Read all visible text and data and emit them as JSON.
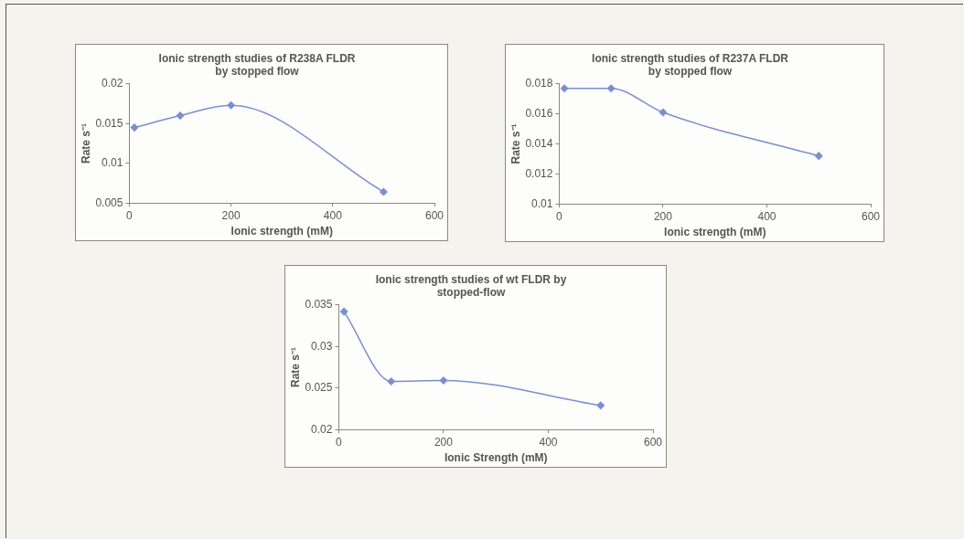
{
  "chart_data": [
    {
      "type": "line",
      "title": "Ionic strength studies of R238A FLDR\nby stopped flow",
      "xlabel": "Ionic strength (mM)",
      "ylabel": "Rate s⁻¹",
      "x": [
        10,
        100,
        200,
        500
      ],
      "series": [
        {
          "color": "#7b8fd0",
          "values": [
            0.0145,
            0.016,
            0.0173,
            0.0064
          ]
        }
      ],
      "xlim": [
        0,
        600
      ],
      "xticks": [
        0,
        200,
        400,
        600
      ],
      "ylim": [
        0.005,
        0.02
      ],
      "yticks": [
        0.005,
        0.01,
        0.015,
        0.02
      ],
      "grid": false,
      "legend": false,
      "marker": "diamond",
      "line_style": "solid"
    },
    {
      "type": "line",
      "title": "Ionic strength studies of R237A FLDR\nby stopped flow",
      "xlabel": "Ionic strength (mM)",
      "ylabel": "Rate s⁻¹",
      "x": [
        10,
        100,
        200,
        500
      ],
      "series": [
        {
          "color": "#7b8fd0",
          "values": [
            0.0177,
            0.0177,
            0.0161,
            0.0132
          ]
        }
      ],
      "xlim": [
        0,
        600
      ],
      "xticks": [
        0,
        200,
        400,
        600
      ],
      "ylim": [
        0.01,
        0.018
      ],
      "yticks": [
        0.01,
        0.012,
        0.014,
        0.016,
        0.018
      ],
      "grid": false,
      "legend": false,
      "marker": "diamond",
      "line_style": "solid"
    },
    {
      "type": "line",
      "title": "Ionic strength studies of wt FLDR by\nstopped-flow",
      "xlabel": "Ionic Strength (mM)",
      "ylabel": "Rate s⁻¹",
      "x": [
        10,
        100,
        200,
        500
      ],
      "series": [
        {
          "color": "#7b8fd0",
          "values": [
            0.0342,
            0.0258,
            0.0259,
            0.0229
          ]
        }
      ],
      "xlim": [
        0,
        600
      ],
      "xticks": [
        0,
        200,
        400,
        600
      ],
      "ylim": [
        0.02,
        0.035
      ],
      "yticks": [
        0.02,
        0.025,
        0.03,
        0.035
      ],
      "grid": false,
      "legend": false,
      "marker": "diamond",
      "line_style": "solid"
    }
  ]
}
